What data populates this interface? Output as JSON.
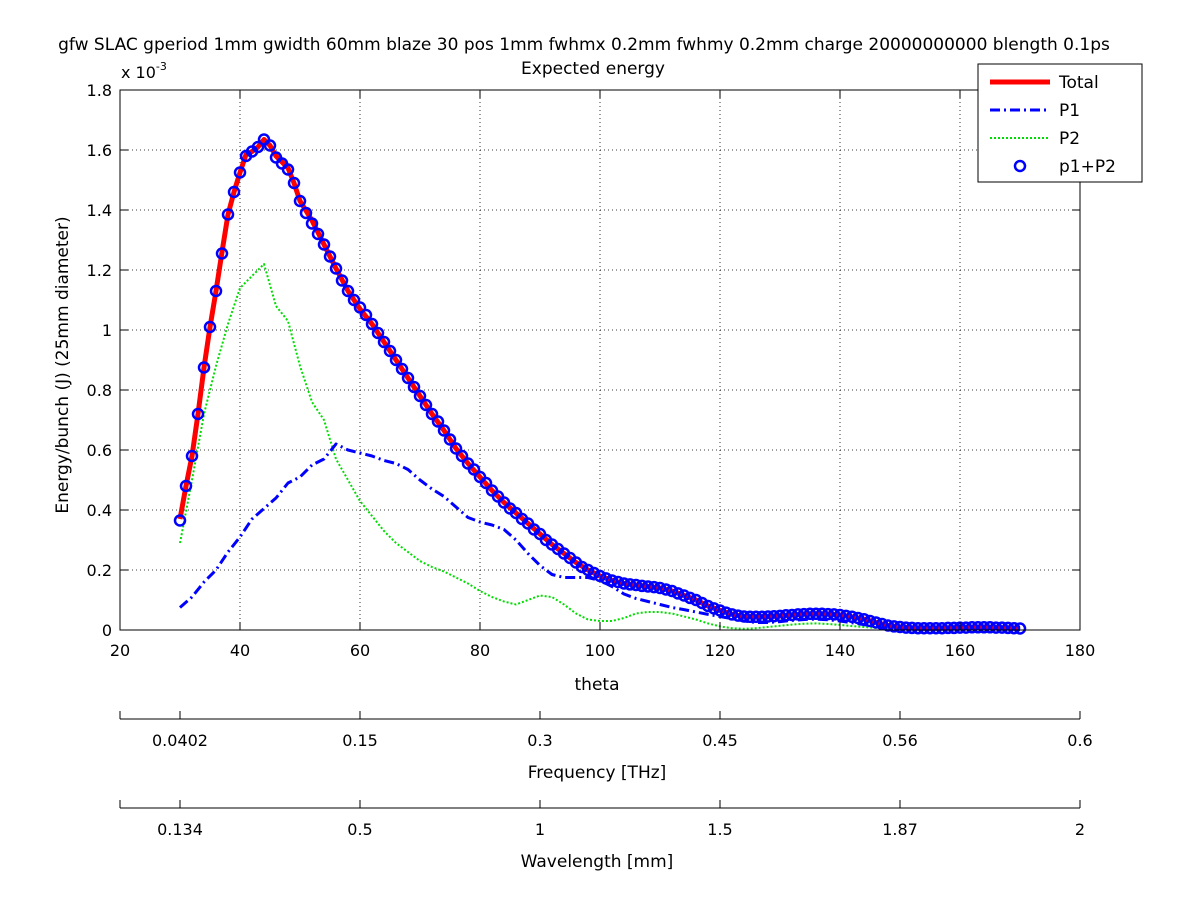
{
  "chart_data": {
    "type": "line",
    "title": "gfw SLAC gperiod 1mm gwidth 60mm blaze 30 pos 1mm fwhmx 0.2mm fwhmy 0.2mm charge 20000000000 blength 0.1ps",
    "subtitle": "Expected energy",
    "xlabel": "theta",
    "ylabel": "Energy/bunch (J) (25mm diameter)",
    "y_multiplier": "x 10",
    "y_multiplier_exponent": "-3",
    "xlim": [
      20,
      180
    ],
    "ylim": [
      0,
      1.8
    ],
    "xticks": [
      "20",
      "40",
      "60",
      "80",
      "100",
      "120",
      "140",
      "160",
      "180"
    ],
    "yticks": [
      "0",
      "0.2",
      "0.4",
      "0.6",
      "0.8",
      "1",
      "1.2",
      "1.4",
      "1.6",
      "1.8"
    ],
    "grid": true,
    "legend_position": "top-right",
    "secondary_axes": [
      {
        "label": "Frequency [THz]",
        "ticks": [
          {
            "theta": 30,
            "label": "0.0402"
          },
          {
            "theta": 20,
            "label": ""
          },
          {
            "theta": 60,
            "label": "0.15"
          },
          {
            "theta": 90,
            "label": "0.3"
          },
          {
            "theta": 120,
            "label": "0.45"
          },
          {
            "theta": 150,
            "label": "0.56"
          },
          {
            "theta": 180,
            "label": "0.6"
          }
        ]
      },
      {
        "label": "Wavelength [mm]",
        "ticks": [
          {
            "theta": 30,
            "label": "0.134"
          },
          {
            "theta": 20,
            "label": ""
          },
          {
            "theta": 60,
            "label": "0.5"
          },
          {
            "theta": 90,
            "label": "1"
          },
          {
            "theta": 120,
            "label": "1.5"
          },
          {
            "theta": 150,
            "label": "1.87"
          },
          {
            "theta": 180,
            "label": "2"
          }
        ]
      }
    ],
    "series": [
      {
        "name": "Total",
        "style": "solid",
        "color": "#ff0000",
        "x": [
          30,
          31,
          32,
          33,
          34,
          35,
          36,
          37,
          38,
          39,
          40,
          41,
          42,
          43,
          44,
          45,
          46,
          47,
          48,
          49,
          50,
          52,
          54,
          56,
          58,
          60,
          62,
          64,
          66,
          68,
          70,
          72,
          74,
          76,
          78,
          80,
          82,
          84,
          86,
          88,
          90,
          92,
          94,
          96,
          98,
          100,
          102,
          104,
          106,
          108,
          110,
          112,
          114,
          116,
          118,
          120,
          122,
          124,
          126,
          128,
          130,
          132,
          134,
          136,
          138,
          140,
          142,
          144,
          146,
          148,
          150,
          152,
          154,
          156,
          158,
          160,
          162,
          164,
          166,
          168,
          170
        ],
        "y": [
          0.37,
          0.48,
          0.58,
          0.72,
          0.875,
          1.01,
          1.13,
          1.26,
          1.385,
          1.46,
          1.525,
          1.585,
          1.595,
          1.61,
          1.635,
          1.615,
          1.58,
          1.56,
          1.54,
          1.49,
          1.43,
          1.365,
          1.285,
          1.205,
          1.13,
          1.07,
          1.02,
          0.96,
          0.9,
          0.84,
          0.78,
          0.72,
          0.665,
          0.605,
          0.555,
          0.51,
          0.465,
          0.425,
          0.39,
          0.355,
          0.32,
          0.285,
          0.255,
          0.225,
          0.2,
          0.18,
          0.165,
          0.155,
          0.15,
          0.145,
          0.14,
          0.13,
          0.115,
          0.1,
          0.08,
          0.065,
          0.052,
          0.045,
          0.044,
          0.045,
          0.047,
          0.05,
          0.053,
          0.054,
          0.053,
          0.05,
          0.044,
          0.036,
          0.025,
          0.015,
          0.01,
          0.007,
          0.006,
          0.006,
          0.007,
          0.008,
          0.009,
          0.009,
          0.008,
          0.007,
          0.005
        ]
      },
      {
        "name": "P1",
        "style": "dashdot",
        "color": "#0000ff",
        "x": [
          30,
          32,
          34,
          36,
          38,
          40,
          42,
          44,
          46,
          48,
          50,
          52,
          54,
          56,
          58,
          60,
          62,
          64,
          66,
          68,
          70,
          72,
          74,
          76,
          78,
          80,
          82,
          84,
          86,
          88,
          90,
          92,
          94,
          96,
          98,
          100,
          102,
          104,
          106,
          108,
          110,
          112,
          114,
          116,
          118,
          120,
          122,
          124,
          126,
          128,
          130,
          132,
          134,
          136,
          138,
          140,
          142,
          144,
          146,
          148,
          150,
          155,
          160,
          165,
          170
        ],
        "y": [
          0.075,
          0.11,
          0.16,
          0.2,
          0.26,
          0.31,
          0.37,
          0.405,
          0.44,
          0.49,
          0.51,
          0.55,
          0.57,
          0.62,
          0.6,
          0.59,
          0.58,
          0.565,
          0.555,
          0.535,
          0.5,
          0.47,
          0.445,
          0.41,
          0.375,
          0.36,
          0.35,
          0.335,
          0.3,
          0.255,
          0.215,
          0.185,
          0.175,
          0.175,
          0.175,
          0.165,
          0.145,
          0.12,
          0.105,
          0.095,
          0.085,
          0.075,
          0.068,
          0.06,
          0.052,
          0.045,
          0.038,
          0.03,
          0.025,
          0.025,
          0.028,
          0.032,
          0.035,
          0.036,
          0.034,
          0.03,
          0.024,
          0.018,
          0.012,
          0.008,
          0.005,
          0.004,
          0.004,
          0.003,
          0.003
        ]
      },
      {
        "name": "P2",
        "style": "dotted",
        "color": "#00dd00",
        "x": [
          30,
          32,
          34,
          36,
          38,
          40,
          42,
          44,
          46,
          48,
          50,
          52,
          54,
          56,
          58,
          60,
          62,
          64,
          66,
          68,
          70,
          72,
          74,
          76,
          78,
          80,
          82,
          84,
          86,
          88,
          90,
          92,
          94,
          96,
          98,
          100,
          102,
          104,
          106,
          108,
          110,
          112,
          114,
          116,
          118,
          120,
          122,
          124,
          126,
          128,
          130,
          132,
          134,
          136,
          138,
          140,
          142,
          144,
          146,
          148,
          150,
          155,
          160,
          165,
          170
        ],
        "y": [
          0.29,
          0.5,
          0.72,
          0.88,
          1.02,
          1.14,
          1.18,
          1.22,
          1.08,
          1.03,
          0.88,
          0.76,
          0.7,
          0.57,
          0.5,
          0.43,
          0.38,
          0.33,
          0.29,
          0.26,
          0.23,
          0.21,
          0.195,
          0.175,
          0.155,
          0.13,
          0.11,
          0.095,
          0.085,
          0.1,
          0.115,
          0.11,
          0.085,
          0.055,
          0.035,
          0.03,
          0.03,
          0.04,
          0.055,
          0.06,
          0.06,
          0.055,
          0.045,
          0.035,
          0.022,
          0.012,
          0.006,
          0.004,
          0.006,
          0.01,
          0.014,
          0.018,
          0.021,
          0.022,
          0.02,
          0.017,
          0.013,
          0.01,
          0.007,
          0.005,
          0.004,
          0.004,
          0.005,
          0.006,
          0.005
        ]
      },
      {
        "name": "p1+P2",
        "style": "circles",
        "color": "#0000ff",
        "x": [
          30,
          31,
          32,
          33,
          34,
          35,
          36,
          37,
          38,
          39,
          40,
          41,
          42,
          43,
          44,
          45,
          46,
          47,
          48,
          49,
          50,
          51,
          52,
          53,
          54,
          55,
          56,
          57,
          58,
          59,
          60,
          61,
          62,
          63,
          64,
          65,
          66,
          67,
          68,
          69,
          70,
          71,
          72,
          73,
          74,
          75,
          76,
          77,
          78,
          79,
          80,
          81,
          82,
          83,
          84,
          85,
          86,
          87,
          88,
          89,
          90,
          91,
          92,
          93,
          94,
          95,
          96,
          97,
          98,
          99,
          100,
          101,
          102,
          103,
          104,
          105,
          106,
          107,
          108,
          109,
          110,
          111,
          112,
          113,
          114,
          115,
          116,
          117,
          118,
          119,
          120,
          121,
          122,
          123,
          124,
          125,
          126,
          127,
          128,
          129,
          130,
          131,
          132,
          133,
          134,
          135,
          136,
          137,
          138,
          139,
          140,
          141,
          142,
          143,
          144,
          145,
          146,
          147,
          148,
          149,
          150,
          151,
          152,
          153,
          154,
          155,
          156,
          157,
          158,
          159,
          160,
          161,
          162,
          163,
          164,
          165,
          166,
          167,
          168,
          169,
          170
        ],
        "y": [
          0.365,
          0.48,
          0.58,
          0.72,
          0.875,
          1.01,
          1.13,
          1.255,
          1.385,
          1.46,
          1.525,
          1.58,
          1.595,
          1.61,
          1.635,
          1.615,
          1.575,
          1.555,
          1.535,
          1.49,
          1.43,
          1.39,
          1.355,
          1.32,
          1.285,
          1.245,
          1.205,
          1.165,
          1.13,
          1.1,
          1.075,
          1.05,
          1.02,
          0.99,
          0.96,
          0.93,
          0.9,
          0.87,
          0.84,
          0.81,
          0.78,
          0.75,
          0.72,
          0.695,
          0.665,
          0.635,
          0.605,
          0.58,
          0.555,
          0.535,
          0.51,
          0.49,
          0.465,
          0.445,
          0.425,
          0.405,
          0.39,
          0.37,
          0.355,
          0.335,
          0.32,
          0.3,
          0.285,
          0.27,
          0.255,
          0.24,
          0.225,
          0.21,
          0.2,
          0.19,
          0.18,
          0.172,
          0.165,
          0.16,
          0.155,
          0.152,
          0.15,
          0.147,
          0.145,
          0.143,
          0.14,
          0.135,
          0.13,
          0.122,
          0.115,
          0.107,
          0.1,
          0.09,
          0.08,
          0.072,
          0.065,
          0.058,
          0.052,
          0.048,
          0.045,
          0.044,
          0.044,
          0.044,
          0.045,
          0.046,
          0.047,
          0.049,
          0.05,
          0.052,
          0.053,
          0.054,
          0.054,
          0.054,
          0.053,
          0.052,
          0.05,
          0.047,
          0.044,
          0.04,
          0.036,
          0.03,
          0.025,
          0.02,
          0.015,
          0.012,
          0.01,
          0.008,
          0.007,
          0.006,
          0.006,
          0.006,
          0.006,
          0.006,
          0.007,
          0.007,
          0.008,
          0.008,
          0.009,
          0.009,
          0.009,
          0.009,
          0.008,
          0.008,
          0.007,
          0.006,
          0.005
        ]
      }
    ]
  }
}
